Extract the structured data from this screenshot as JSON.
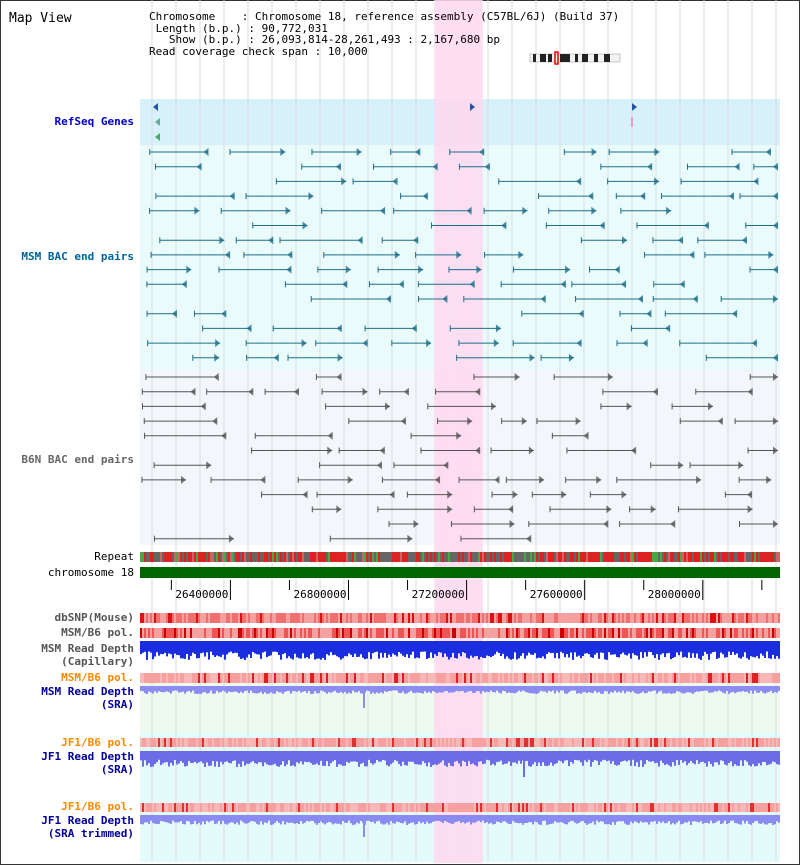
{
  "page": {
    "title": "Map View"
  },
  "info": {
    "chromosome_key": "Chromosome",
    "chromosome_val": "Chromosome 18, reference assembly (C57BL/6J) (Build 37)",
    "length_key": "Length (b.p.)",
    "length_val": "90,772,031",
    "show_key": "Show (b.p.)",
    "show_val": "26,093,814-28,261,493 : 2,167,680 bp",
    "span_key": "Read coverage check span",
    "span_val": "10,000"
  },
  "tracks": {
    "refseq": "RefSeq Genes",
    "msm_bac": "MSM BAC end pairs",
    "b6n_bac": "B6N BAC end pairs",
    "repeat": "Repeat",
    "chromosome": "chromosome 18",
    "dbsnp": "dbSNP(Mouse)",
    "msm_pol_1": "MSM/B6 pol.",
    "msm_depth_cap_1": "MSM Read Depth",
    "msm_depth_cap_2": "(Capillary)",
    "msm_pol_2": "MSM/B6 pol.",
    "msm_depth_sra_1": "MSM Read Depth",
    "msm_depth_sra_2": "(SRA)",
    "jf1_pol_1": "JF1/B6 pol.",
    "jf1_depth_sra_1": "JF1 Read Depth",
    "jf1_depth_sra_2": "(SRA)",
    "jf1_pol_2": "JF1/B6 pol.",
    "jf1_depth_trim_1": "JF1 Read Depth",
    "jf1_depth_trim_2": "(SRA trimmed)"
  },
  "axis": {
    "ticks": [
      "26400000",
      "26800000",
      "27200000",
      "27600000",
      "28000000"
    ],
    "tick_values": [
      26400000,
      26800000,
      27200000,
      27600000,
      28000000
    ],
    "range": [
      26093814,
      28261493
    ]
  },
  "highlight": {
    "start": 27090000,
    "end": 27255000
  },
  "colors": {
    "refseq_label": "#0000cc",
    "msm_label": "#006699",
    "b6n_label": "#666666",
    "msm_pol2_label": "#ff8800",
    "jf1_label": "#ff8800",
    "depth_label": "#000099",
    "highlight": "#ffd8f0"
  }
}
